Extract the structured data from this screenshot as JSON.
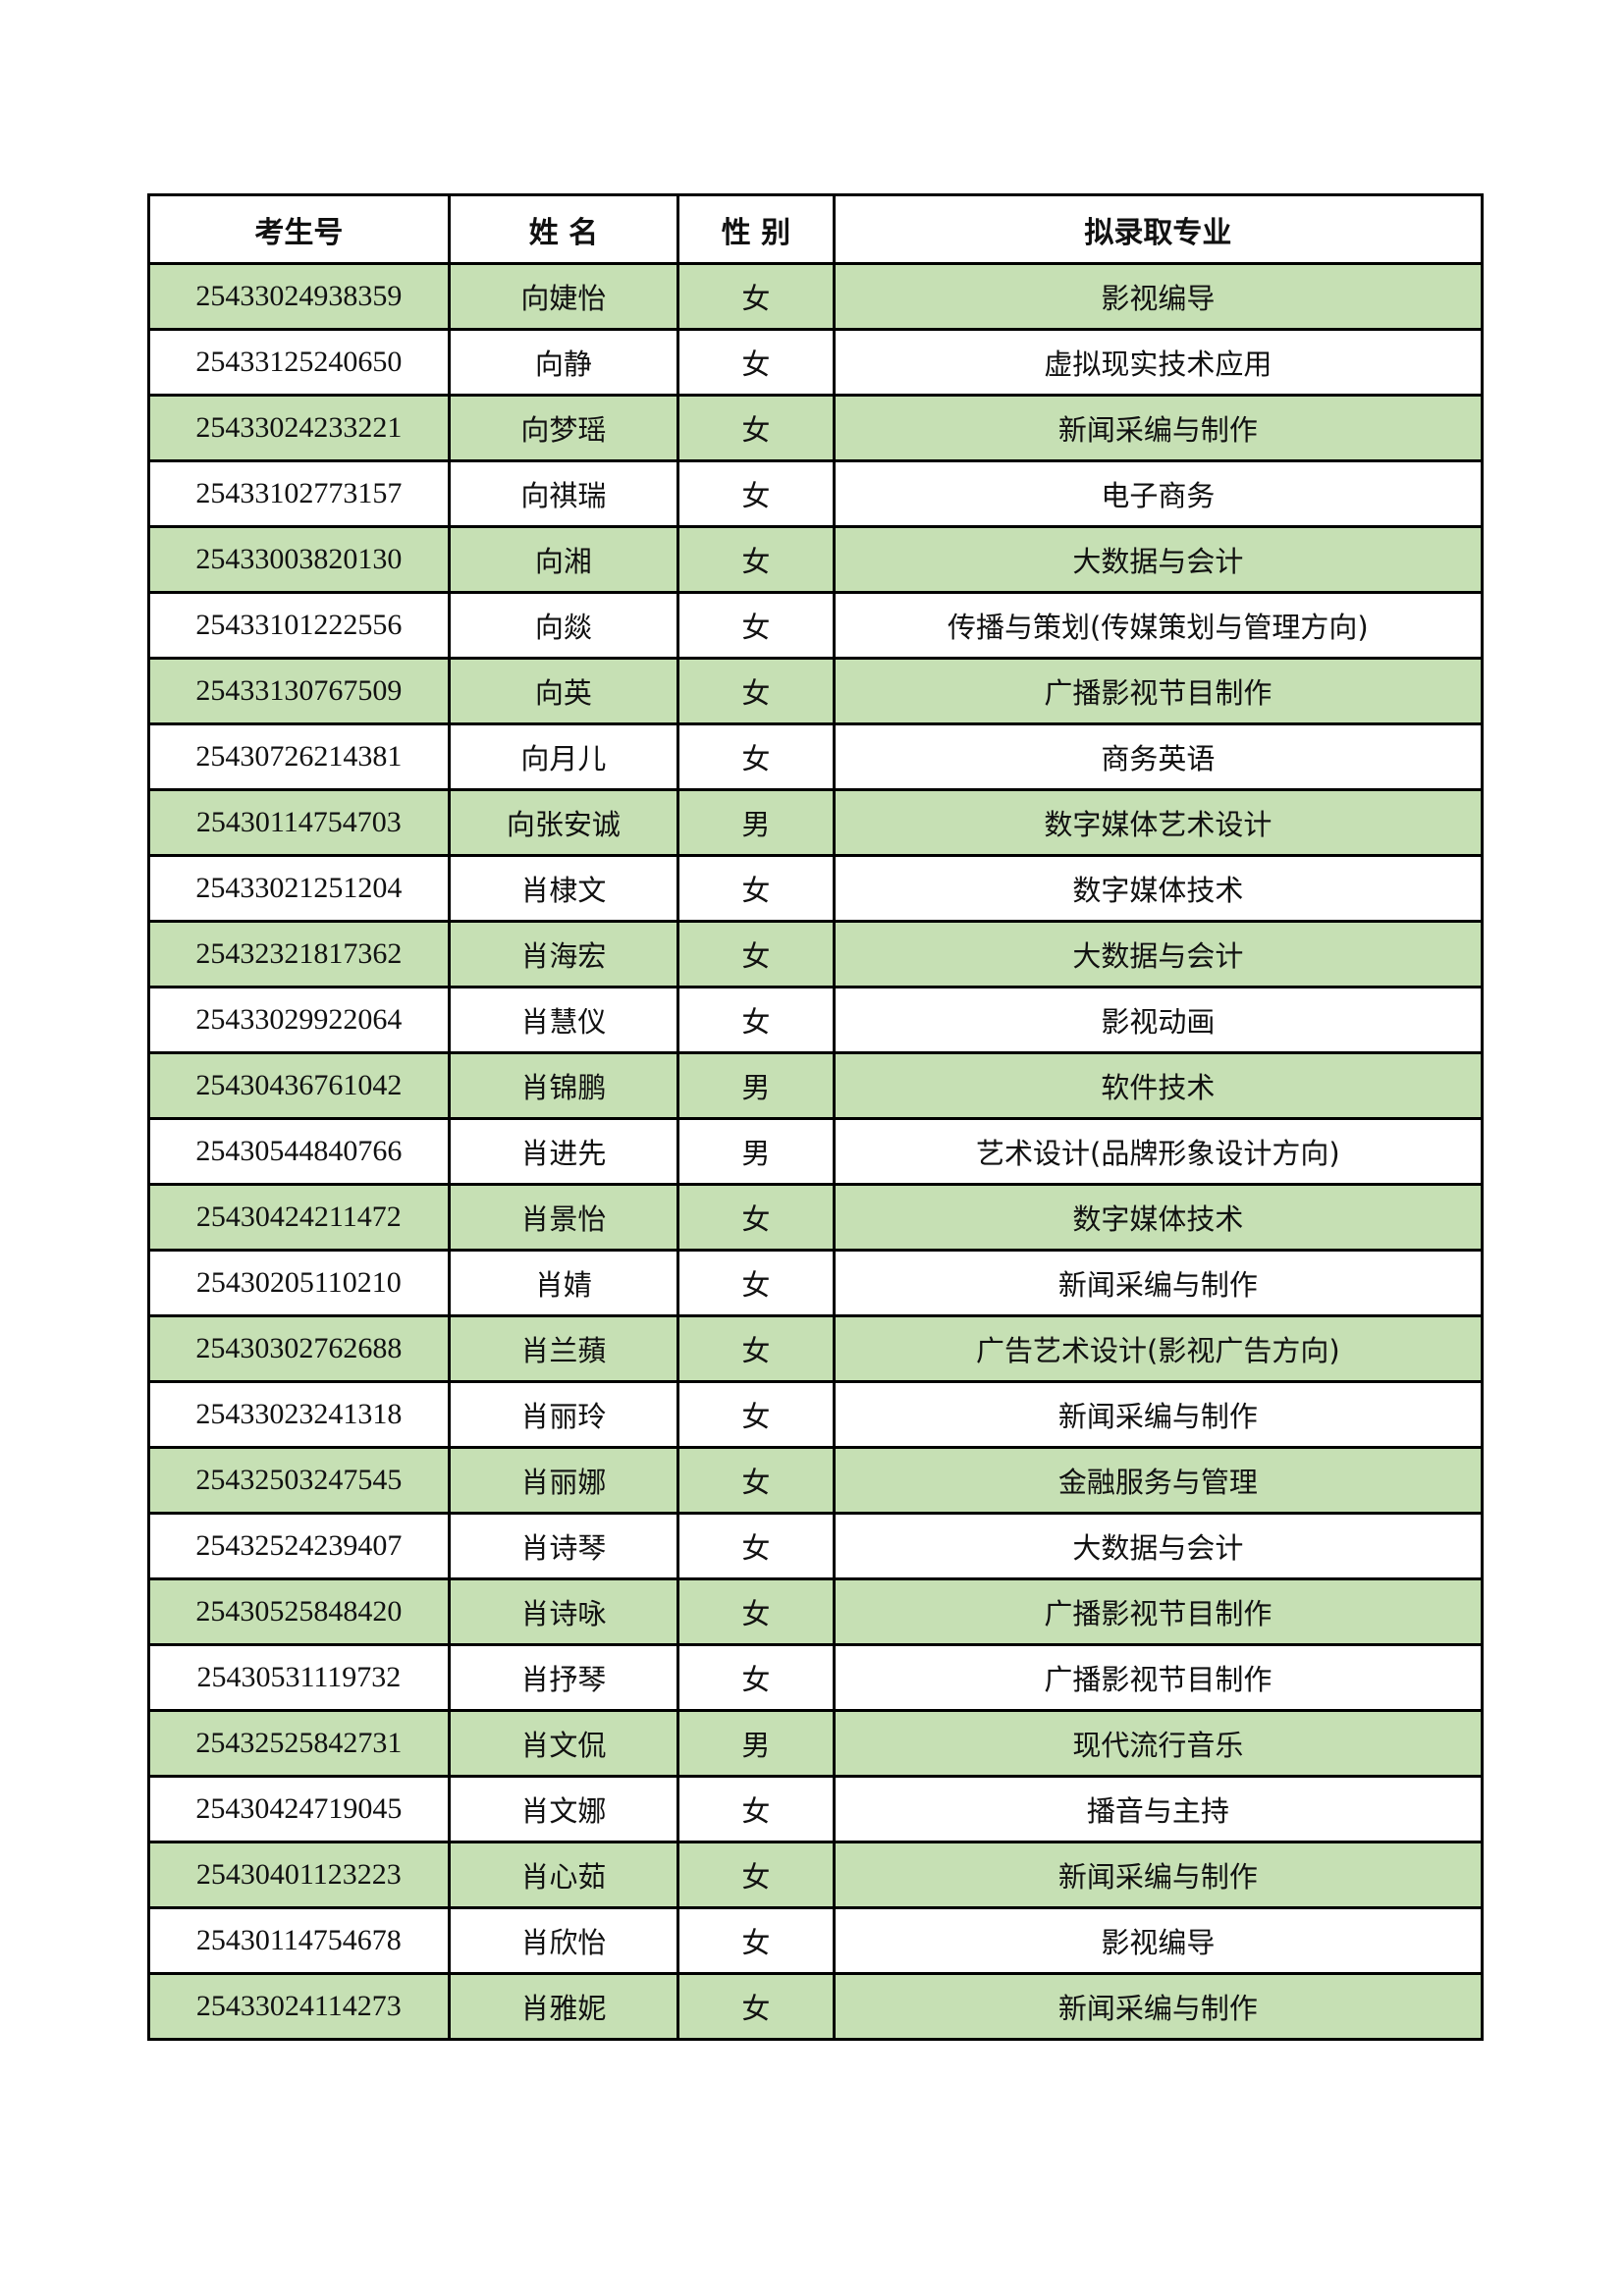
{
  "table": {
    "headers": [
      "考生号",
      "姓  名",
      "性  别",
      "拟录取专业"
    ],
    "row_fill_color": "#c6e0b4",
    "rows": [
      [
        "25433024938359",
        "向婕怡",
        "女",
        "影视编导"
      ],
      [
        "25433125240650",
        "向静",
        "女",
        "虚拟现实技术应用"
      ],
      [
        "25433024233221",
        "向梦瑶",
        "女",
        "新闻采编与制作"
      ],
      [
        "25433102773157",
        "向祺瑞",
        "女",
        "电子商务"
      ],
      [
        "25433003820130",
        "向湘",
        "女",
        "大数据与会计"
      ],
      [
        "25433101222556",
        "向燚",
        "女",
        "传播与策划(传媒策划与管理方向)"
      ],
      [
        "25433130767509",
        "向英",
        "女",
        "广播影视节目制作"
      ],
      [
        "25430726214381",
        "向月儿",
        "女",
        "商务英语"
      ],
      [
        "25430114754703",
        "向张安诚",
        "男",
        "数字媒体艺术设计"
      ],
      [
        "25433021251204",
        "肖棣文",
        "女",
        "数字媒体技术"
      ],
      [
        "25432321817362",
        "肖海宏",
        "女",
        "大数据与会计"
      ],
      [
        "25433029922064",
        "肖慧仪",
        "女",
        "影视动画"
      ],
      [
        "25430436761042",
        "肖锦鹏",
        "男",
        "软件技术"
      ],
      [
        "25430544840766",
        "肖进先",
        "男",
        "艺术设计(品牌形象设计方向)"
      ],
      [
        "25430424211472",
        "肖景怡",
        "女",
        "数字媒体技术"
      ],
      [
        "25430205110210",
        "肖婧",
        "女",
        "新闻采编与制作"
      ],
      [
        "25430302762688",
        "肖兰蘋",
        "女",
        "广告艺术设计(影视广告方向)"
      ],
      [
        "25433023241318",
        "肖丽玲",
        "女",
        "新闻采编与制作"
      ],
      [
        "25432503247545",
        "肖丽娜",
        "女",
        "金融服务与管理"
      ],
      [
        "25432524239407",
        "肖诗琴",
        "女",
        "大数据与会计"
      ],
      [
        "25430525848420",
        "肖诗咏",
        "女",
        "广播影视节目制作"
      ],
      [
        "25430531119732",
        "肖抒琴",
        "女",
        "广播影视节目制作"
      ],
      [
        "25432525842731",
        "肖文侃",
        "男",
        "现代流行音乐"
      ],
      [
        "25430424719045",
        "肖文娜",
        "女",
        "播音与主持"
      ],
      [
        "25430401123223",
        "肖心茹",
        "女",
        "新闻采编与制作"
      ],
      [
        "25430114754678",
        "肖欣怡",
        "女",
        "影视编导"
      ],
      [
        "25433024114273",
        "肖雅妮",
        "女",
        "新闻采编与制作"
      ]
    ]
  }
}
